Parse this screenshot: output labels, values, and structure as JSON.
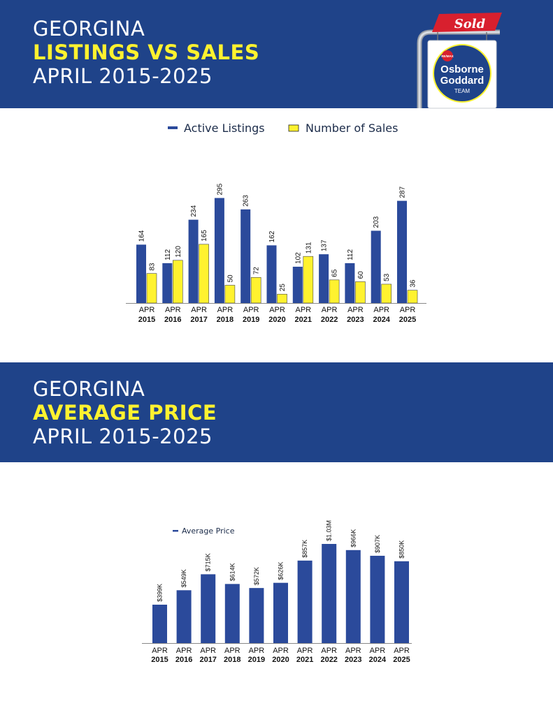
{
  "header1": {
    "line1": "GEORGINA",
    "line2": "LISTINGS VS SALES",
    "line3": "APRIL 2015-2025"
  },
  "header2": {
    "line1": "GEORGINA",
    "line2": "AVERAGE PRICE",
    "line3": "APRIL 2015-2025"
  },
  "logo": {
    "sold": "Sold",
    "brand": "RE/MAX",
    "name1": "Osborne",
    "name2": "Goddard",
    "name3": "TEAM"
  },
  "colors": {
    "banner": "#1f4389",
    "accent": "#fff22f",
    "bar_blue": "#2b4a9b",
    "bar_yellow": "#fff22f",
    "sold_red": "#d8202e"
  },
  "chart_data": [
    {
      "type": "bar",
      "categories": [
        "APR 2015",
        "APR 2016",
        "APR 2017",
        "APR 2018",
        "APR 2019",
        "APR 2020",
        "APR 2021",
        "APR 2022",
        "APR 2023",
        "APR 2024",
        "APR 2025"
      ],
      "tick_line1": [
        "APR",
        "APR",
        "APR",
        "APR",
        "APR",
        "APR",
        "APR",
        "APR",
        "APR",
        "APR",
        "APR"
      ],
      "tick_line2": [
        "2015",
        "2016",
        "2017",
        "2018",
        "2019",
        "2020",
        "2021",
        "2022",
        "2023",
        "2024",
        "2025"
      ],
      "series": [
        {
          "name": "Active Listings",
          "color": "#2b4a9b",
          "values": [
            164,
            112,
            234,
            295,
            263,
            162,
            102,
            137,
            112,
            203,
            287
          ],
          "labels": [
            "164",
            "112",
            "234",
            "295",
            "263",
            "162",
            "102",
            "137",
            "112",
            "203",
            "287"
          ]
        },
        {
          "name": "Number of Sales",
          "color": "#fff22f",
          "values": [
            83,
            120,
            165,
            50,
            72,
            25,
            131,
            65,
            60,
            53,
            36
          ],
          "labels": [
            "83",
            "120",
            "165",
            "50",
            "72",
            "25",
            "131",
            "65",
            "60",
            "53",
            "36"
          ]
        }
      ],
      "legend_position": "top-center",
      "ylim": [
        0,
        300
      ],
      "grid": false
    },
    {
      "type": "bar",
      "categories": [
        "APR 2015",
        "APR 2016",
        "APR 2017",
        "APR 2018",
        "APR 2019",
        "APR 2020",
        "APR 2021",
        "APR 2022",
        "APR 2023",
        "APR 2024",
        "APR 2025"
      ],
      "tick_line1": [
        "APR",
        "APR",
        "APR",
        "APR",
        "APR",
        "APR",
        "APR",
        "APR",
        "APR",
        "APR",
        "APR"
      ],
      "tick_line2": [
        "2015",
        "2016",
        "2017",
        "2018",
        "2019",
        "2020",
        "2021",
        "2022",
        "2023",
        "2024",
        "2025"
      ],
      "series": [
        {
          "name": "Average Price",
          "color": "#2b4a9b",
          "values": [
            399000,
            549000,
            715000,
            614000,
            572000,
            626000,
            857000,
            1030000,
            966000,
            907000,
            850000
          ],
          "labels": [
            "$399K",
            "$549K",
            "$715K",
            "$614K",
            "$572K",
            "$626K",
            "$857K",
            "$1.03M",
            "$966K",
            "$907K",
            "$850K"
          ]
        }
      ],
      "legend_position": "top-left",
      "ylim": [
        0,
        1100000
      ],
      "grid": false
    }
  ]
}
